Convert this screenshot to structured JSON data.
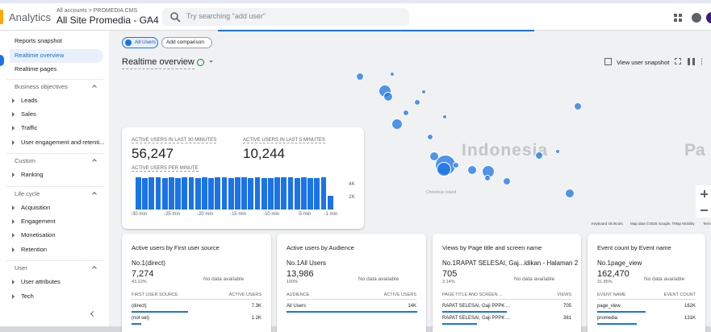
{
  "header": {
    "app": "Analytics",
    "breadcrumb": "All accounts > PROMEDIA CMS",
    "property": "All Site Promedia - GA4",
    "search_placeholder": "Try searching \"add user\""
  },
  "sidebar": {
    "top": [
      "Reports snapshot",
      "Realtime overview",
      "Realtime pages"
    ],
    "sections": [
      {
        "title": "Business objectives",
        "items": [
          "Leads",
          "Sales",
          "Traffic",
          "User engagement and retenti..."
        ]
      },
      {
        "title": "Custom",
        "items": [
          "Ranking"
        ]
      },
      {
        "title": "Life cycle",
        "items": [
          "Acquisition",
          "Engagement",
          "Monetisation",
          "Retention"
        ]
      },
      {
        "title": "User",
        "items": [
          "User attributes",
          "Tech"
        ]
      }
    ]
  },
  "chips": [
    "All Users",
    "Add comparison"
  ],
  "page_title": "Realtime overview",
  "snapshot": "View user snapshot",
  "map": {
    "country": "Indonesia",
    "neighbor": "Pa",
    "island": "Christmas Island",
    "shortcuts": "Keyboard shortcuts",
    "attribution": "Map data ©2025 Google, TMap Mobility",
    "terms": "Terms"
  },
  "realtime": {
    "metrics": [
      {
        "label": "ACTIVE USERS IN LAST 30 MINUTES",
        "value": "56,247"
      },
      {
        "label": "ACTIVE USERS IN LAST 5 MINUTES",
        "value": "10,244"
      }
    ],
    "chart_data": {
      "type": "bar",
      "title": "ACTIVE USERS PER MINUTE",
      "categories": [
        "-30 min",
        null,
        null,
        null,
        null,
        "-25 min",
        null,
        null,
        null,
        null,
        "-20 min",
        null,
        null,
        null,
        null,
        "-15 min",
        null,
        null,
        null,
        null,
        "-10 min",
        null,
        null,
        null,
        null,
        "-5 min",
        null,
        null,
        null,
        "-1 min"
      ],
      "values": [
        5100,
        5050,
        5150,
        5100,
        5000,
        5100,
        5050,
        5100,
        5150,
        5050,
        5100,
        5000,
        5100,
        5100,
        5050,
        5150,
        5100,
        5050,
        5100,
        5000,
        5050,
        5100,
        5150,
        5100,
        5050,
        5100,
        5000,
        5050,
        5150,
        2200
      ],
      "color": "#1a73e8",
      "ylim": [
        0,
        5500
      ],
      "yticks": [
        {
          "value": 4000,
          "label": "4K"
        },
        {
          "value": 2000,
          "label": "2K"
        }
      ]
    }
  },
  "cards": [
    {
      "title": "Active users by First user source",
      "top_label": "No.1",
      "top_name": "(direct)",
      "top_value": "7,274",
      "top_share": "43.22%",
      "empty": "No data available",
      "columns": [
        "FIRST USER SOURCE",
        "ACTIVE USERS"
      ],
      "rows": [
        {
          "label": "(direct)",
          "value": 7300,
          "value_label": "7.3K"
        },
        {
          "label": "(not set)",
          "value": 1200,
          "value_label": "1.2K"
        }
      ]
    },
    {
      "title": "Active users by Audience",
      "top_label": "No.1",
      "top_name": "All Users",
      "top_value": "13,986",
      "top_share": "100%",
      "empty": "No data available",
      "columns": [
        "AUDIENCE",
        "ACTIVE USERS"
      ],
      "rows": [
        {
          "label": "All Users",
          "value": 14000,
          "value_label": "14K"
        }
      ]
    },
    {
      "title": "Views by Page title and screen name",
      "top_label": "No.1",
      "top_name": "RAPAT SELESAI, Gaj...idikan - Halaman 2",
      "top_value": "705",
      "top_share": "3.14%",
      "empty": "No data available",
      "columns": [
        "PAGE TITLE AND SCREEN ...",
        "VIEWS"
      ],
      "rows": [
        {
          "label": "RAPAT SELESAI, Gaji PPPK ...",
          "value": 705
        },
        {
          "label": "RAPAT SELESAI, Gaji PPPK ...",
          "value": 381
        }
      ]
    },
    {
      "title": "Event count by Event name",
      "top_label": "No.1",
      "top_name": "page_view",
      "top_value": "162,470",
      "top_share": "31.85%",
      "empty": "No data available",
      "columns": [
        "EVENT NAME",
        "EVENT COUNT"
      ],
      "rows": [
        {
          "label": "page_view",
          "value": 162000,
          "value_label": "162K"
        },
        {
          "label": "promedia",
          "value": 131000,
          "value_label": "131K"
        }
      ]
    }
  ]
}
